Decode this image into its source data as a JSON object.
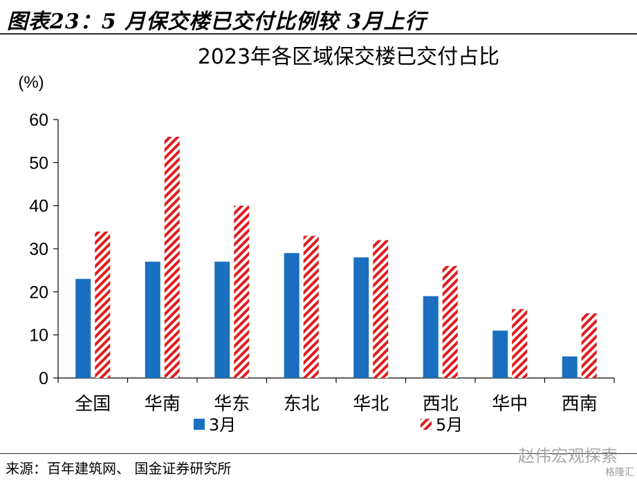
{
  "figure": {
    "title": "图表23：5 月保交楼已交付比例较 3月上行",
    "source": "来源：百年建筑网、 国金证券研究所",
    "watermark": "赵伟宏观探索",
    "watermark_badge": "格隆汇"
  },
  "chart_data": {
    "type": "bar",
    "title": "2023年各区域保交楼已交付占比",
    "ylabel": "(%)",
    "xlabel": "",
    "ylim": [
      0,
      60
    ],
    "yticks": [
      0,
      10,
      20,
      30,
      40,
      50,
      60
    ],
    "categories": [
      "全国",
      "华南",
      "华东",
      "东北",
      "华北",
      "西北",
      "华中",
      "西南"
    ],
    "series": [
      {
        "name": "3月",
        "values": [
          23,
          27,
          27,
          29,
          28,
          19,
          11,
          5
        ],
        "color": "#1a6fc0",
        "pattern": "solid"
      },
      {
        "name": "5月",
        "values": [
          34,
          56,
          40,
          33,
          32,
          26,
          16,
          15
        ],
        "color": "#e01b1b",
        "pattern": "red-white-diagonal-hatch"
      }
    ],
    "grid": false,
    "legend_position": "bottom-center"
  }
}
